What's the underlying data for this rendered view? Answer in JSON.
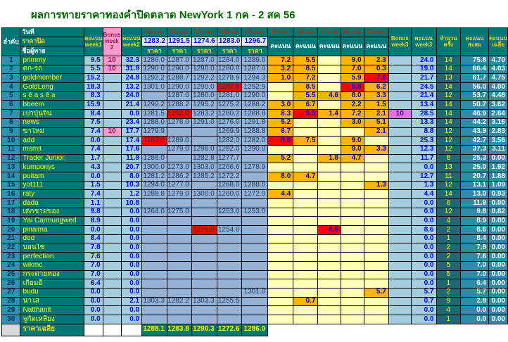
{
  "title": "ผลการทายราคาทองคำปิดตลาด NewYork 1 กค - 2 สค 56",
  "colors": {
    "title_green": "#006400",
    "header_teal": "#007878",
    "index_blue": "#2d93ae",
    "light_blue": "#a3cede",
    "price_blue": "#95b3d7",
    "score_orange": "#ffb400",
    "score_blank": "#ffffb9",
    "best_red": "#ff0000",
    "bonus_pink": "#ff99cc",
    "bonus_orchid": "#df73df",
    "count_teal": "#1f6873",
    "total_teal": "#2f8ca8",
    "name_yellow": "#ffff00",
    "date_red": "#cc2200"
  },
  "header": {
    "index": "ลำดับ",
    "date_label": "วันที่",
    "close_label": "ราคาปิด",
    "name_label": "ชื่อผู้ทาย",
    "week1": "คะแนน week1",
    "bonus2": "Bonus week 2",
    "week2": "คะแนน week2",
    "dates": [
      "15-ก.ค.",
      "16-ก.ค.",
      "17-ก.ค.",
      "18-ก.ค.",
      "19-ก.ค."
    ],
    "closes": [
      "1283.2",
      "1291.5",
      "1274.6",
      "1283.0",
      "1296.7"
    ],
    "price_label": "ราคา",
    "score_label": "คะแนน",
    "bonus3": "Bonus week3",
    "week3": "คะแนน week3",
    "count": "จำนวน ครั้ง",
    "total": "คะแนน สะสม",
    "avg": "คะแนน เฉลี่ย"
  },
  "rows": [
    {
      "no": "1",
      "name": "primmy",
      "w1": "9.5",
      "b2": "10",
      "w2": "32.3",
      "prices": [
        "1286.0",
        "1287.0",
        "1287.0",
        "1284.0",
        "1289.0"
      ],
      "scores": [
        "7.2",
        "5.5",
        "",
        "9.0",
        "2.3"
      ],
      "rp": -1,
      "rs": -1,
      "b3": "",
      "w3": "24.0",
      "n": "14",
      "total": "75.8",
      "avg": "4.70"
    },
    {
      "no": "2",
      "name": "ตก-รถ",
      "w1": "5.5",
      "b2": "10",
      "w2": "31.9",
      "prices": [
        "1290.0",
        "1290.0",
        "1290.0",
        "1280.0",
        "1287.0"
      ],
      "scores": [
        "3.2",
        "8.5",
        "",
        "7.0",
        "0.3"
      ],
      "rp": -1,
      "rs": -1,
      "b3": "",
      "w3": "19.0",
      "n": "14",
      "total": "66.4",
      "avg": "4.03"
    },
    {
      "no": "3",
      "name": "goldmember",
      "w1": "15.2",
      "b2": "",
      "w2": "24.8",
      "prices": [
        "1292.2",
        "1288.7",
        "1292.2",
        "1278.9",
        "1294.3"
      ],
      "scores": [
        "1.0",
        "7.2",
        "",
        "5.9",
        "7.6"
      ],
      "rp": -1,
      "rs": 4,
      "b3": "",
      "w3": "21.7",
      "n": "13",
      "total": "61.7",
      "avg": "4.75"
    },
    {
      "no": "4",
      "name": "GoldLeng",
      "w1": "18.3",
      "b2": "",
      "w2": "13.2",
      "prices": [
        "1301.0",
        "1290.0",
        "1290.0",
        "1282.8",
        "1292.9"
      ],
      "scores": [
        "",
        "8.5",
        "",
        "9.8",
        "6.2"
      ],
      "rp": 3,
      "rs": 3,
      "b3": "",
      "w3": "24.5",
      "n": "14",
      "total": "56.0",
      "avg": "4.00"
    },
    {
      "no": "5",
      "name": "s ē a s ē a",
      "w1": "8.3",
      "b2": "",
      "w2": "24.0",
      "prices": [
        "",
        "1287.0",
        "1280.0",
        "1281.0",
        "1290.0"
      ],
      "scores": [
        "",
        "5.5",
        "4.6",
        "8.0",
        "3.3"
      ],
      "rp": -1,
      "rs": -1,
      "b3": "",
      "w3": "21.4",
      "n": "12",
      "total": "53.7",
      "avg": "4.48"
    },
    {
      "no": "6",
      "name": "bbeem",
      "w1": "15.9",
      "b2": "",
      "w2": "21.4",
      "prices": [
        "1290.2",
        "1288.2",
        "1295.2",
        "1275.2",
        "1288.2"
      ],
      "scores": [
        "3.0",
        "6.7",
        "",
        "2.2",
        "1.5"
      ],
      "rp": -1,
      "rs": -1,
      "b3": "",
      "w3": "13.4",
      "n": "14",
      "total": "50.7",
      "avg": "3.62"
    },
    {
      "no": "7",
      "name": "เปาบุ้นจิ้น",
      "w1": "8.4",
      "b2": "",
      "w2": "0.0",
      "prices": [
        "1281.5",
        "1292.0",
        "1283.2",
        "1280.2",
        "1288.8"
      ],
      "scores": [
        "8.3",
        "9.5",
        "1.4",
        "7.2",
        "2.1"
      ],
      "rp": 1,
      "rs": 1,
      "b3": "10",
      "w3": "28.5",
      "n": "14",
      "total": "46.9",
      "avg": "2.64"
    },
    {
      "no": "8",
      "name": "news",
      "w1": "7.5",
      "b2": "",
      "w2": "23.4",
      "prices": [
        "1288.0",
        "1278.0",
        "1291.0",
        "1276.0",
        "1291.8"
      ],
      "scores": [
        "5.2",
        "",
        "",
        "3.0",
        "5.1"
      ],
      "rp": -1,
      "rs": -1,
      "b3": "",
      "w3": "13.3",
      "n": "14",
      "total": "44.2",
      "avg": "3.16"
    },
    {
      "no": "9",
      "name": "ขาใหม่",
      "w1": "7.4",
      "b2": "10",
      "w2": "17.7",
      "prices": [
        "1279.9",
        "",
        "",
        "1269.9",
        "1288.8"
      ],
      "scores": [
        "6.7",
        "",
        "",
        "",
        "2.1"
      ],
      "rp": -1,
      "rs": -1,
      "b3": "",
      "w3": "8.8",
      "n": "12",
      "total": "43.9",
      "avg": "2.83"
    },
    {
      "no": "10",
      "name": "add",
      "w1": "0.0",
      "b2": "",
      "w2": "17.4",
      "prices": [
        "1282.0",
        "1289.0",
        "",
        "1282.0",
        "1282.0"
      ],
      "scores": [
        "8.8",
        "7.5",
        "",
        "9.0",
        ""
      ],
      "rp": 0,
      "rs": 0,
      "b3": "",
      "w3": "25.3",
      "n": "12",
      "total": "42.7",
      "avg": "3.56"
    },
    {
      "no": "11",
      "name": "msmit",
      "w1": "7.4",
      "b2": "",
      "w2": "17.6",
      "prices": [
        "",
        "1279.0",
        "1296.0",
        "1282.0",
        "1290.0"
      ],
      "scores": [
        "",
        "",
        "",
        "9.0",
        "3.3"
      ],
      "rp": -1,
      "rs": -1,
      "b3": "",
      "w3": "12.3",
      "n": "12",
      "total": "37.3",
      "avg": "3.11"
    },
    {
      "no": "12",
      "name": "Trader Junior",
      "w1": "1.7",
      "b2": "",
      "w2": "11.9",
      "prices": [
        "1288.0",
        "",
        "1282.8",
        "1277.7",
        ""
      ],
      "scores": [
        "5.2",
        "",
        "1.8",
        "4.7",
        ""
      ],
      "rp": -1,
      "rs": -1,
      "b3": "",
      "w3": "11.7",
      "n": "8",
      "total": "25.3",
      "avg": "0.00"
    },
    {
      "no": "13",
      "name": "kumponys",
      "w1": "4.3",
      "b2": "",
      "w2": "20.7",
      "prices": [
        "1300.0",
        "1273.0",
        "1303.0",
        "1266.6",
        "1278.9"
      ],
      "scores": [
        "",
        "",
        "",
        "",
        ""
      ],
      "rp": -1,
      "rs": -1,
      "b3": "",
      "w3": "0.0",
      "n": "13",
      "total": "25.0",
      "avg": "1.92"
    },
    {
      "no": "14",
      "name": "puitam",
      "w1": "0.0",
      "b2": "",
      "w2": "8.0",
      "prices": [
        "1281.2",
        "1286.2",
        "1285.2",
        "1272.2",
        ""
      ],
      "scores": [
        "8.0",
        "4.7",
        "",
        "",
        ""
      ],
      "rp": -1,
      "rs": -1,
      "b3": "",
      "w3": "12.7",
      "n": "11",
      "total": "20.7",
      "avg": "1.88"
    },
    {
      "no": "15",
      "name": "yot111",
      "w1": "1.5",
      "b2": "",
      "w2": "10.3",
      "prices": [
        "1294.0",
        "1277.0",
        "",
        "1268.0",
        "1288.0"
      ],
      "scores": [
        "",
        "",
        "",
        "",
        "1.3"
      ],
      "rp": -1,
      "rs": -1,
      "b3": "",
      "w3": "1.3",
      "n": "12",
      "total": "13.1",
      "avg": "1.09"
    },
    {
      "no": "16",
      "name": "raty",
      "w1": "7.4",
      "b2": "",
      "w2": "1.2",
      "prices": [
        "1288.8",
        "1279.0",
        "1300.0",
        "1260.0",
        "1272.0"
      ],
      "scores": [
        "4.4",
        "",
        "",
        "",
        ""
      ],
      "rp": -1,
      "rs": -1,
      "b3": "",
      "w3": "4.4",
      "n": "14",
      "total": "13.0",
      "avg": "0.93"
    },
    {
      "no": "17",
      "name": "dada",
      "w1": "1.1",
      "b2": "",
      "w2": "10.8",
      "prices": [
        "",
        "",
        "",
        "",
        ""
      ],
      "scores": [
        "",
        "",
        "",
        "",
        ""
      ],
      "rp": -1,
      "rs": -1,
      "b3": "",
      "w3": "0.0",
      "n": "6",
      "total": "11.9",
      "avg": "0.00"
    },
    {
      "no": "18",
      "name": "เด็กชายของ",
      "w1": "9.8",
      "b2": "",
      "w2": "0.0",
      "prices": [
        "1264.0",
        "1275.0",
        "",
        "1253.0",
        "1253.0"
      ],
      "scores": [
        "",
        "",
        "",
        "",
        ""
      ],
      "rp": -1,
      "rs": -1,
      "b3": "",
      "w3": "0.0",
      "n": "12",
      "total": "9.8",
      "avg": "0.82"
    },
    {
      "no": "19",
      "name": "Yai Carmungwed",
      "w1": "8.9",
      "b2": "",
      "w2": "0.0",
      "prices": [
        "",
        "",
        "",
        "",
        ""
      ],
      "scores": [
        "",
        "",
        "",
        "",
        ""
      ],
      "rp": -1,
      "rs": -1,
      "b3": "",
      "w3": "0.0",
      "n": "4",
      "total": "8.9",
      "avg": "0.00"
    },
    {
      "no": "20",
      "name": "pinaima",
      "w1": "0.0",
      "b2": "",
      "w2": "0.0",
      "prices": [
        "",
        "",
        "1276.0",
        "1254.0",
        ""
      ],
      "scores": [
        "",
        "",
        "8.6",
        "",
        ""
      ],
      "rp": 2,
      "rs": 2,
      "b3": "",
      "w3": "8.6",
      "n": "2",
      "total": "8.6",
      "avg": "0.00"
    },
    {
      "no": "21",
      "name": "dod",
      "w1": "8.4",
      "b2": "",
      "w2": "0.0",
      "prices": [
        "",
        "",
        "",
        "",
        ""
      ],
      "scores": [
        "",
        "",
        "",
        "",
        ""
      ],
      "rp": -1,
      "rs": -1,
      "b3": "",
      "w3": "0.0",
      "n": "1",
      "total": "8.4",
      "avg": "0.00"
    },
    {
      "no": "22",
      "name": "บอนไซ",
      "w1": "7.8",
      "b2": "",
      "w2": "0.0",
      "prices": [
        "",
        "",
        "",
        "",
        ""
      ],
      "scores": [
        "",
        "",
        "",
        "",
        ""
      ],
      "rp": -1,
      "rs": -1,
      "b3": "",
      "w3": "0.0",
      "n": "2",
      "total": "7.8",
      "avg": "0.00"
    },
    {
      "no": "23",
      "name": "perfection",
      "w1": "7.6",
      "b2": "",
      "w2": "0.0",
      "prices": [
        "",
        "",
        "",
        "",
        ""
      ],
      "scores": [
        "",
        "",
        "",
        "",
        ""
      ],
      "rp": -1,
      "rs": -1,
      "b3": "",
      "w3": "0.0",
      "n": "2",
      "total": "7.6",
      "avg": "0.00"
    },
    {
      "no": "24",
      "name": "wikmc",
      "w1": "7.0",
      "b2": "",
      "w2": "0.0",
      "prices": [
        "",
        "",
        "",
        "",
        ""
      ],
      "scores": [
        "",
        "",
        "",
        "",
        ""
      ],
      "rp": -1,
      "rs": -1,
      "b3": "",
      "w3": "0.0",
      "n": "5",
      "total": "7.0",
      "avg": "0.00"
    },
    {
      "no": "25",
      "name": "กระต่ายทอง",
      "w1": "7.0",
      "b2": "",
      "w2": "0.0",
      "prices": [
        "",
        "",
        "",
        "",
        ""
      ],
      "scores": [
        "",
        "",
        "",
        "",
        ""
      ],
      "rp": -1,
      "rs": -1,
      "b3": "",
      "w3": "0.0",
      "n": "5",
      "total": "7.0",
      "avg": "0.00"
    },
    {
      "no": "26",
      "name": "เกี๊ยมอี๋",
      "w1": "6.4",
      "b2": "",
      "w2": "0.0",
      "prices": [
        "",
        "",
        "",
        "",
        ""
      ],
      "scores": [
        "",
        "",
        "",
        "",
        ""
      ],
      "rp": -1,
      "rs": -1,
      "b3": "",
      "w3": "0.0",
      "n": "1",
      "total": "6.4",
      "avg": "0.00"
    },
    {
      "no": "27",
      "name": "budu",
      "w1": "0.0",
      "b2": "",
      "w2": "0.0",
      "prices": [
        "",
        "",
        "",
        "",
        "1301.0"
      ],
      "scores": [
        "",
        "",
        "",
        "",
        "5.7"
      ],
      "rp": -1,
      "rs": -1,
      "b3": "",
      "w3": "5.7",
      "n": "2",
      "total": "5.7",
      "avg": "0.00"
    },
    {
      "no": "28",
      "name": "น้ำใส",
      "w1": "0.0",
      "b2": "",
      "w2": "2.1",
      "prices": [
        "1303.3",
        "1282.2",
        "1303.3",
        "1255.5",
        ""
      ],
      "scores": [
        "",
        "0.7",
        "",
        "",
        ""
      ],
      "rp": -1,
      "rs": -1,
      "b3": "",
      "w3": "0.7",
      "n": "9",
      "total": "2.8",
      "avg": "0.00"
    },
    {
      "no": "29",
      "name": "Natthanit",
      "w1": "0.0",
      "b2": "",
      "w2": "0.0",
      "prices": [
        "",
        "",
        "",
        "",
        ""
      ],
      "scores": [
        "",
        "",
        "",
        "",
        ""
      ],
      "rp": -1,
      "rs": -1,
      "b3": "",
      "w3": "0.0",
      "n": "4",
      "total": "0.0",
      "avg": "0.00"
    },
    {
      "no": "30",
      "name": "จูกัดเหลียง",
      "w1": "0.0",
      "b2": "",
      "w2": "0.0",
      "prices": [
        "",
        "",
        "",
        "",
        ""
      ],
      "scores": [
        "",
        "",
        "",
        "",
        ""
      ],
      "rp": -1,
      "rs": -1,
      "b3": "",
      "w3": "0.0",
      "n": "1",
      "total": "0.0",
      "avg": "0.00"
    }
  ],
  "footer": {
    "label": "ราคาเฉลี่ย",
    "values": [
      "1288.1",
      "1283.8",
      "1290.3",
      "1272.6",
      "1286.0"
    ]
  }
}
